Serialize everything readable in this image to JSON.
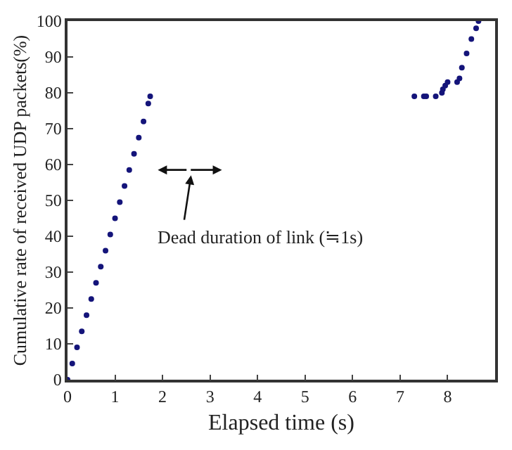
{
  "chart_data": {
    "type": "scatter",
    "xlabel": "Elapsed time (s)",
    "ylabel": "Cumulative rate of received UDP packets(%)",
    "x": [
      0,
      0.1,
      0.2,
      0.3,
      0.4,
      0.5,
      0.6,
      0.7,
      0.8,
      0.9,
      1.0,
      1.1,
      1.2,
      1.3,
      1.4,
      1.5,
      1.6,
      1.7,
      1.74,
      7.3,
      7.5,
      7.55,
      7.75,
      7.88,
      7.9,
      7.95,
      8.0,
      8.2,
      8.25,
      8.3,
      8.4,
      8.5,
      8.6,
      8.65
    ],
    "series": [
      {
        "color": "#14147a",
        "values": [
          0,
          4.5,
          9,
          13.5,
          18,
          22.5,
          27,
          31.5,
          36,
          40.5,
          45,
          49.5,
          54,
          58.5,
          63,
          67.5,
          72,
          77,
          79,
          79,
          79,
          79,
          79,
          80,
          81,
          82,
          83,
          83,
          84,
          87,
          91,
          95,
          98,
          100
        ]
      }
    ],
    "xlim": [
      0,
      9
    ],
    "xticks": [
      0,
      1,
      2,
      3,
      4,
      5,
      6,
      7,
      8
    ],
    "ylim": [
      0,
      100
    ],
    "yticks": [
      0,
      10,
      20,
      30,
      40,
      50,
      60,
      70,
      80,
      90,
      100
    ],
    "annotations": [
      "Dead duration of link (≒1s)"
    ],
    "marker": "circle"
  }
}
